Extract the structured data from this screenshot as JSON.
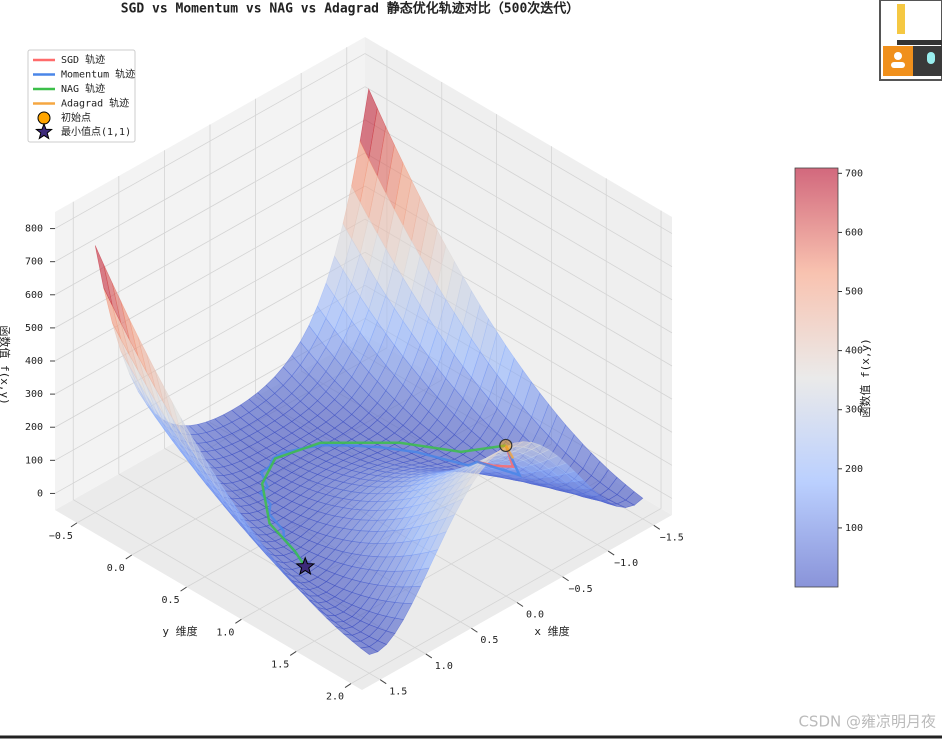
{
  "chart_data": {
    "type": "surface3d",
    "title": "SGD vs Momentum vs NAG vs Adagrad 静态优化轨迹对比（500次迭代）",
    "xlabel": "x 维度",
    "ylabel": "y 维度",
    "zlabel": "函数值 f(x,y)",
    "colorbar_label": "函数值 f(x,y)",
    "colormap": "coolwarm",
    "xlim": [
      -1.7,
      1.7
    ],
    "ylim": [
      -0.7,
      2.1
    ],
    "zlim": [
      -50,
      850
    ],
    "xticks": [
      {
        "value": -1.5,
        "label": "−1.5"
      },
      {
        "value": -1.0,
        "label": "−1.0"
      },
      {
        "value": -0.5,
        "label": "−0.5"
      },
      {
        "value": 0.0,
        "label": "0.0"
      },
      0.5,
      {
        "value": 1.0,
        "label": "1.0"
      },
      1.5
    ],
    "yticks": [
      {
        "value": -0.5,
        "label": "−0.5"
      },
      {
        "value": 0.0,
        "label": "0.0"
      },
      0.5,
      {
        "value": 1.0,
        "label": "1.0"
      },
      1.5,
      {
        "value": 2.0,
        "label": "2.0"
      }
    ],
    "zticks": [
      0,
      100,
      200,
      300,
      400,
      500,
      600,
      700,
      800
    ],
    "clim": [
      0,
      709
    ],
    "cticks": [
      100,
      200,
      300,
      400,
      500,
      600,
      700
    ],
    "series": [
      {
        "name": "SGD 轨迹",
        "color": "#ff6b6b",
        "x": [
          -1.2,
          -1.1,
          -1.0,
          -0.95
        ],
        "y": [
          1.0,
          1.15,
          1.05,
          0.95
        ],
        "z": [
          24.2,
          4.8,
          4.3,
          4.0
        ]
      },
      {
        "name": "Momentum 轨迹",
        "color": "#4a86e8",
        "x": [
          -1.2,
          -1.05,
          -0.95,
          -0.85,
          -0.7,
          -0.55,
          -0.4,
          -0.25,
          -0.1,
          0.05,
          0.15,
          0.25,
          0.35,
          0.45,
          0.55,
          0.6,
          0.7,
          0.78,
          0.85,
          0.92,
          1.0
        ],
        "y": [
          1.0,
          1.25,
          0.95,
          0.95,
          0.6,
          0.4,
          0.25,
          0.12,
          0.05,
          0.0,
          0.0,
          0.05,
          0.06,
          0.2,
          0.22,
          0.35,
          0.42,
          0.62,
          0.68,
          0.85,
          1.0
        ],
        "z": [
          24.2,
          6.4,
          4.0,
          8.6,
          4.1,
          3.4,
          2.8,
          1.9,
          1.4,
          0.9,
          0.8,
          0.6,
          0.8,
          0.3,
          0.9,
          0.2,
          0.6,
          0.1,
          0.2,
          0.0,
          0.0
        ]
      },
      {
        "name": "NAG 轨迹",
        "color": "#3cbf4a",
        "x": [
          -1.2,
          -0.95,
          -0.7,
          -0.26,
          0.14,
          0.45,
          0.79,
          0.91,
          1.0
        ],
        "y": [
          1.0,
          0.8,
          0.45,
          0.09,
          0.01,
          0.15,
          0.5,
          0.83,
          1.0
        ],
        "z": [
          24.2,
          4.9,
          3.1,
          1.6,
          0.8,
          0.6,
          1.4,
          0.0,
          0.0
        ]
      },
      {
        "name": "Adagrad 轨迹",
        "color": "#f5a742",
        "x": [
          -1.2,
          -1.18,
          -1.16
        ],
        "y": [
          1.0,
          1.05,
          1.1
        ],
        "z": [
          24.2,
          16.5,
          10.7
        ]
      }
    ],
    "start": {
      "name": "初始点",
      "color": "#ffa500",
      "x": -1.2,
      "y": 1.0,
      "z": 24.2
    },
    "minimum": {
      "name": "最小值点(1,1)",
      "color": "#3d2a7a",
      "x": 1,
      "y": 1,
      "z": 0
    }
  },
  "watermark": "CSDN @雍凉明月夜"
}
